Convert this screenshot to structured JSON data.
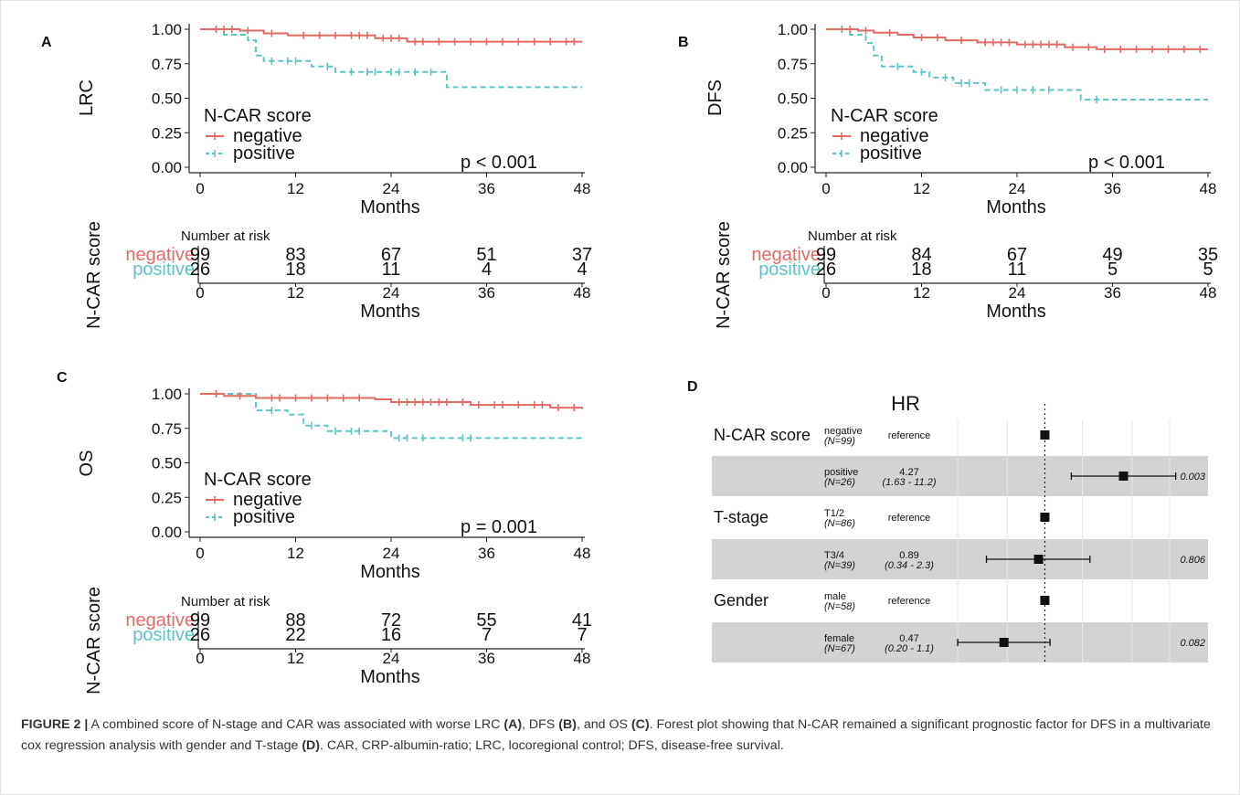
{
  "figure": {
    "caption_label": "FIGURE 2 |",
    "caption_text_1": " A combined score of N-stage and CAR was associated with worse LRC ",
    "caption_ref_a": "(A)",
    "caption_text_2": ", DFS ",
    "caption_ref_b": "(B)",
    "caption_text_3": ", and OS ",
    "caption_ref_c": "(C)",
    "caption_text_4": ". Forest plot showing that N-CAR remained a significant prognostic factor for DFS in a multivariate cox regression analysis with gender and T-stage ",
    "caption_ref_d": "(D)",
    "caption_text_5": ". CAR, CRP-albumin-ratio; LRC, locoregional control; DFS, disease-free survival."
  },
  "colors": {
    "negative": "#e06b66",
    "positive": "#5ec3c3",
    "shade": "#d3d3d3",
    "text": "#111111"
  },
  "chart_data": [
    {
      "type": "line",
      "panel": "A",
      "ylabel": "LRC",
      "xlabel": "Months",
      "xlim": [
        0,
        48
      ],
      "ylim": [
        0,
        1
      ],
      "x_ticks": [
        0,
        12,
        24,
        36,
        48
      ],
      "y_ticks": [
        "0.00",
        "0.25",
        "0.50",
        "0.75",
        "1.00"
      ],
      "legend_title": "N-CAR score",
      "pvalue": "p < 0.001",
      "series": [
        {
          "name": "negative",
          "style": "solid",
          "steps": [
            [
              0,
              1.0
            ],
            [
              5,
              0.99
            ],
            [
              8,
              0.97
            ],
            [
              11,
              0.955
            ],
            [
              22,
              0.935
            ],
            [
              26,
              0.91
            ],
            [
              48,
              0.91
            ]
          ],
          "censor": [
            2,
            3,
            4,
            6,
            9,
            13,
            15,
            17,
            19,
            20,
            21,
            23,
            24,
            25,
            27,
            28,
            30,
            32,
            34,
            36,
            38,
            40,
            42,
            44,
            46,
            47
          ]
        },
        {
          "name": "positive",
          "style": "dashed",
          "steps": [
            [
              0,
              1.0
            ],
            [
              3,
              0.96
            ],
            [
              6,
              0.92
            ],
            [
              7,
              0.81
            ],
            [
              8,
              0.77
            ],
            [
              14,
              0.73
            ],
            [
              17,
              0.69
            ],
            [
              31,
              0.58
            ],
            [
              48,
              0.58
            ]
          ],
          "censor": [
            9,
            11,
            12,
            16,
            19,
            21,
            22,
            24,
            25,
            27,
            29
          ]
        }
      ],
      "risk_table": {
        "title": "Number at risk",
        "ylabel": "N-CAR score",
        "xlabel": "Months",
        "x_ticks": [
          0,
          12,
          24,
          36,
          48
        ],
        "rows": [
          {
            "name": "negative",
            "values": [
              "99",
              "83",
              "67",
              "51",
              "37"
            ]
          },
          {
            "name": "positive",
            "values": [
              "26",
              "18",
              "11",
              "4",
              "4"
            ]
          }
        ]
      }
    },
    {
      "type": "line",
      "panel": "B",
      "ylabel": "DFS",
      "xlabel": "Months",
      "xlim": [
        0,
        48
      ],
      "ylim": [
        0,
        1
      ],
      "x_ticks": [
        0,
        12,
        24,
        36,
        48
      ],
      "y_ticks": [
        "0.00",
        "0.25",
        "0.50",
        "0.75",
        "1.00"
      ],
      "legend_title": "N-CAR score",
      "pvalue": "p < 0.001",
      "series": [
        {
          "name": "negative",
          "style": "solid",
          "steps": [
            [
              0,
              1.0
            ],
            [
              4,
              0.99
            ],
            [
              6,
              0.975
            ],
            [
              9,
              0.96
            ],
            [
              11,
              0.94
            ],
            [
              15,
              0.92
            ],
            [
              19,
              0.905
            ],
            [
              24,
              0.89
            ],
            [
              30,
              0.87
            ],
            [
              34,
              0.855
            ],
            [
              48,
              0.855
            ]
          ],
          "censor": [
            2,
            3,
            5,
            8,
            12,
            14,
            17,
            20,
            21,
            22,
            23,
            25,
            26,
            27,
            28,
            29,
            31,
            33,
            35,
            37,
            39,
            41,
            43,
            45,
            47
          ]
        },
        {
          "name": "positive",
          "style": "dashed",
          "steps": [
            [
              0,
              1.0
            ],
            [
              3,
              0.96
            ],
            [
              5,
              0.9
            ],
            [
              6,
              0.81
            ],
            [
              7,
              0.73
            ],
            [
              11,
              0.69
            ],
            [
              13,
              0.65
            ],
            [
              16,
              0.61
            ],
            [
              20,
              0.56
            ],
            [
              32,
              0.49
            ],
            [
              48,
              0.49
            ]
          ],
          "censor": [
            9,
            12,
            15,
            17,
            18,
            22,
            24,
            26,
            28,
            34
          ]
        }
      ],
      "risk_table": {
        "title": "Number at risk",
        "ylabel": "N-CAR score",
        "xlabel": "Months",
        "x_ticks": [
          0,
          12,
          24,
          36,
          48
        ],
        "rows": [
          {
            "name": "negative",
            "values": [
              "99",
              "84",
              "67",
              "49",
              "35"
            ]
          },
          {
            "name": "positive",
            "values": [
              "26",
              "18",
              "11",
              "5",
              "5"
            ]
          }
        ]
      }
    },
    {
      "type": "line",
      "panel": "C",
      "ylabel": "OS",
      "xlabel": "Months",
      "xlim": [
        0,
        48
      ],
      "ylim": [
        0,
        1
      ],
      "x_ticks": [
        0,
        12,
        24,
        36,
        48
      ],
      "y_ticks": [
        "0.00",
        "0.25",
        "0.50",
        "0.75",
        "1.00"
      ],
      "legend_title": "N-CAR score",
      "pvalue": "p = 0.001",
      "series": [
        {
          "name": "negative",
          "style": "solid",
          "steps": [
            [
              0,
              1.0
            ],
            [
              3,
              0.985
            ],
            [
              7,
              0.97
            ],
            [
              22,
              0.96
            ],
            [
              24,
              0.94
            ],
            [
              34,
              0.92
            ],
            [
              44,
              0.9
            ],
            [
              48,
              0.89
            ]
          ],
          "censor": [
            2,
            5,
            9,
            10,
            12,
            14,
            16,
            18,
            20,
            25,
            26,
            27,
            28,
            29,
            30,
            31,
            33,
            35,
            37,
            38,
            40,
            42,
            43,
            45,
            47
          ]
        },
        {
          "name": "positive",
          "style": "dashed",
          "steps": [
            [
              0,
              1.0
            ],
            [
              7,
              0.88
            ],
            [
              11,
              0.85
            ],
            [
              13,
              0.77
            ],
            [
              16,
              0.73
            ],
            [
              24,
              0.68
            ],
            [
              48,
              0.68
            ]
          ],
          "censor": [
            9,
            14,
            17,
            19,
            20,
            25,
            26,
            28,
            33,
            34
          ]
        }
      ],
      "risk_table": {
        "title": "Number at risk",
        "ylabel": "N-CAR score",
        "xlabel": "Months",
        "x_ticks": [
          0,
          12,
          24,
          36,
          48
        ],
        "rows": [
          {
            "name": "negative",
            "values": [
              "99",
              "88",
              "72",
              "55",
              "41"
            ]
          },
          {
            "name": "positive",
            "values": [
              "26",
              "22",
              "16",
              "7",
              "7"
            ]
          }
        ]
      }
    },
    {
      "type": "forest",
      "panel": "D",
      "header": "HR",
      "log_scale": true,
      "xlim": [
        0.15,
        20
      ],
      "reference": 1,
      "rows": [
        {
          "variable": "N-CAR score",
          "level": "negative",
          "n": "(N=99)",
          "hr_text": "reference",
          "ci_text": "",
          "p": "",
          "hr": 1,
          "lo": null,
          "hi": null
        },
        {
          "variable": "",
          "level": "positive",
          "n": "(N=26)",
          "hr_text": "4.27",
          "ci_text": "(1.63 - 11.2)",
          "p": "0.003",
          "hr": 4.27,
          "lo": 1.63,
          "hi": 11.2
        },
        {
          "variable": "T-stage",
          "level": "T1/2",
          "n": "(N=86)",
          "hr_text": "reference",
          "ci_text": "",
          "p": "",
          "hr": 1,
          "lo": null,
          "hi": null
        },
        {
          "variable": "",
          "level": "T3/4",
          "n": "(N=39)",
          "hr_text": "0.89",
          "ci_text": "(0.34 - 2.3)",
          "p": "0.806",
          "hr": 0.89,
          "lo": 0.34,
          "hi": 2.3
        },
        {
          "variable": "Gender",
          "level": "male",
          "n": "(N=58)",
          "hr_text": "reference",
          "ci_text": "",
          "p": "",
          "hr": 1,
          "lo": null,
          "hi": null
        },
        {
          "variable": "",
          "level": "female",
          "n": "(N=67)",
          "hr_text": "0.47",
          "ci_text": "(0.20 - 1.1)",
          "p": "0.082",
          "hr": 0.47,
          "lo": 0.2,
          "hi": 1.1
        }
      ]
    }
  ]
}
